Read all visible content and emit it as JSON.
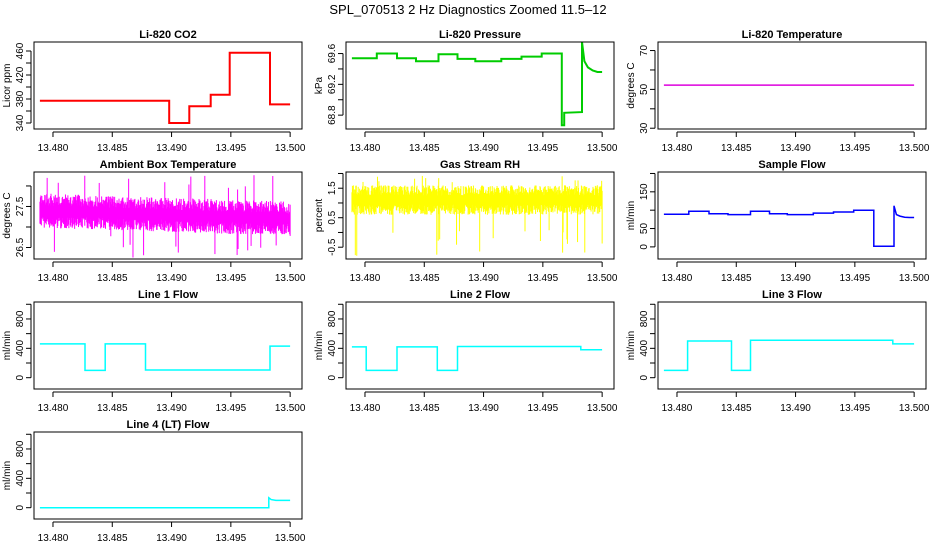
{
  "title": "SPL_070513  2 Hz Diagnostics Zoomed 11.5–12",
  "chart_data": [
    {
      "type": "line",
      "title": "Li-820 CO2",
      "ylabel": "Licor ppm",
      "color": "#ff0000",
      "xlim": [
        13.4784,
        13.501
      ],
      "ylim": [
        330,
        475
      ],
      "xticks": [
        13.48,
        13.485,
        13.49,
        13.495,
        13.5
      ],
      "xtick_labels": [
        "13.480",
        "13.485",
        "13.490",
        "13.495",
        "13.500"
      ],
      "yticks": [
        340,
        360,
        380,
        400,
        420,
        440,
        460
      ],
      "ytick_labels": [
        "340",
        "",
        "380",
        "",
        "420",
        "",
        "460"
      ],
      "x": [
        13.4789,
        13.4898,
        13.4898,
        13.4915,
        13.4915,
        13.4933,
        13.4933,
        13.4949,
        13.4949,
        13.4983,
        13.4983,
        13.5
      ],
      "y": [
        377,
        377,
        340,
        340,
        368,
        368,
        387,
        387,
        457,
        457,
        371,
        371
      ]
    },
    {
      "type": "line",
      "title": "Li-820 Pressure",
      "ylabel": "kPa",
      "color": "#00cc00",
      "xlim": [
        13.4784,
        13.501
      ],
      "ylim": [
        68.62,
        69.75
      ],
      "xticks": [
        13.48,
        13.485,
        13.49,
        13.495,
        13.5
      ],
      "xtick_labels": [
        "13.480",
        "13.485",
        "13.490",
        "13.495",
        "13.500"
      ],
      "yticks": [
        68.8,
        69.0,
        69.2,
        69.4,
        69.6
      ],
      "ytick_labels": [
        "68.8",
        "",
        "69.2",
        "",
        "69.6"
      ],
      "x": [
        13.4789,
        13.481,
        13.481,
        13.4827,
        13.4827,
        13.4843,
        13.4843,
        13.4862,
        13.4862,
        13.4878,
        13.4878,
        13.4893,
        13.4893,
        13.4915,
        13.4915,
        13.4932,
        13.4932,
        13.4949,
        13.4949,
        13.4966,
        13.4966,
        13.4968,
        13.4968,
        13.4983,
        13.4983,
        13.4985,
        13.4988,
        13.4992,
        13.4996,
        13.5
      ],
      "y": [
        69.54,
        69.54,
        69.6,
        69.6,
        69.54,
        69.54,
        69.5,
        69.5,
        69.59,
        69.59,
        69.53,
        69.53,
        69.5,
        69.5,
        69.53,
        69.53,
        69.56,
        69.56,
        69.6,
        69.6,
        68.67,
        68.67,
        68.83,
        68.84,
        69.75,
        69.5,
        69.42,
        69.38,
        69.36,
        69.36
      ]
    },
    {
      "type": "line",
      "title": "Li-820 Temperature",
      "ylabel": "degrees C",
      "color": "#dd00dd",
      "xlim": [
        13.4784,
        13.501
      ],
      "ylim": [
        29.6,
        74.4
      ],
      "xticks": [
        13.48,
        13.485,
        13.49,
        13.495,
        13.5
      ],
      "xtick_labels": [
        "13.480",
        "13.485",
        "13.490",
        "13.495",
        "13.500"
      ],
      "yticks": [
        30,
        40,
        50,
        60,
        70
      ],
      "ytick_labels": [
        "30",
        "",
        "50",
        "",
        "70"
      ],
      "x": [
        13.4789,
        13.5
      ],
      "y": [
        52.2,
        52.2
      ]
    },
    {
      "type": "line",
      "title": "Ambient Box Temperature",
      "ylabel": "degrees C",
      "color": "#ff00ff",
      "xlim": [
        13.4784,
        13.501
      ],
      "ylim": [
        26.22,
        28.34
      ],
      "xticks": [
        13.48,
        13.485,
        13.49,
        13.495,
        13.5
      ],
      "xtick_labels": [
        "13.480",
        "13.485",
        "13.490",
        "13.495",
        "13.500"
      ],
      "yticks": [
        26.5,
        27.0,
        27.5,
        28.0
      ],
      "ytick_labels": [
        "26.5",
        "",
        "27.5",
        ""
      ],
      "noise": {
        "x_start": 13.4789,
        "x_end": 13.5,
        "center": 27.4,
        "center_end": 27.2,
        "spread": 0.42,
        "min": 26.25,
        "max": 28.3
      }
    },
    {
      "type": "line",
      "title": "Gas Stream RH",
      "ylabel": "percent",
      "color": "#ffff00",
      "xlim": [
        13.4784,
        13.501
      ],
      "ylim": [
        -0.9,
        2.05
      ],
      "xticks": [
        13.48,
        13.485,
        13.49,
        13.495,
        13.5
      ],
      "xtick_labels": [
        "13.480",
        "13.485",
        "13.490",
        "13.495",
        "13.500"
      ],
      "yticks": [
        -0.5,
        0,
        0.5,
        1,
        1.5,
        2
      ],
      "ytick_labels": [
        "-0.5",
        "",
        "0.5",
        "",
        "1.5",
        ""
      ],
      "noise": {
        "x_start": 13.4789,
        "x_end": 13.5,
        "center": 1.1,
        "center_end": 1.1,
        "spread": 0.5,
        "min": -0.85,
        "max": 2.0
      }
    },
    {
      "type": "line",
      "title": "Sample Flow",
      "ylabel": "ml/min",
      "color": "#0000ff",
      "xlim": [
        13.4784,
        13.501
      ],
      "ylim": [
        -33,
        204
      ],
      "xticks": [
        13.48,
        13.485,
        13.49,
        13.495,
        13.5
      ],
      "xtick_labels": [
        "13.480",
        "13.485",
        "13.490",
        "13.495",
        "13.500"
      ],
      "yticks": [
        0,
        50,
        100,
        150,
        200
      ],
      "ytick_labels": [
        "0",
        "50",
        "",
        "150",
        ""
      ],
      "x": [
        13.4789,
        13.481,
        13.481,
        13.4827,
        13.4827,
        13.4843,
        13.4843,
        13.4862,
        13.4862,
        13.4878,
        13.4878,
        13.4893,
        13.4893,
        13.4915,
        13.4915,
        13.4932,
        13.4932,
        13.4949,
        13.4949,
        13.4966,
        13.4966,
        13.4983,
        13.4983,
        13.4985,
        13.4988,
        13.4992,
        13.4996,
        13.5
      ],
      "y": [
        89,
        89,
        97,
        97,
        90,
        90,
        88,
        88,
        97,
        97,
        90,
        90,
        88,
        88,
        92,
        92,
        95,
        95,
        100,
        100,
        2,
        2,
        112,
        88,
        84,
        81,
        80,
        80
      ]
    },
    {
      "type": "line",
      "title": "Line 1 Flow",
      "ylabel": "ml/min",
      "color": "#00ffff",
      "xlim": [
        13.4784,
        13.501
      ],
      "ylim": [
        -154,
        1031
      ],
      "xticks": [
        13.48,
        13.485,
        13.49,
        13.495,
        13.5
      ],
      "xtick_labels": [
        "13.480",
        "13.485",
        "13.490",
        "13.495",
        "13.500"
      ],
      "yticks": [
        0,
        200,
        400,
        600,
        800,
        1000
      ],
      "ytick_labels": [
        "0",
        "",
        "400",
        "",
        "800",
        ""
      ],
      "x": [
        13.4789,
        13.4827,
        13.4827,
        13.4844,
        13.4844,
        13.4878,
        13.4878,
        13.4983,
        13.4983,
        13.5
      ],
      "y": [
        460,
        460,
        100,
        100,
        460,
        460,
        105,
        105,
        430,
        430
      ]
    },
    {
      "type": "line",
      "title": "Line 2 Flow",
      "ylabel": "ml/min",
      "color": "#00ffff",
      "xlim": [
        13.4784,
        13.501
      ],
      "ylim": [
        -154,
        1031
      ],
      "xticks": [
        13.48,
        13.485,
        13.49,
        13.495,
        13.5
      ],
      "xtick_labels": [
        "13.480",
        "13.485",
        "13.490",
        "13.495",
        "13.500"
      ],
      "yticks": [
        0,
        200,
        400,
        600,
        800,
        1000
      ],
      "ytick_labels": [
        "0",
        "",
        "400",
        "",
        "800",
        ""
      ],
      "x": [
        13.4789,
        13.4801,
        13.4801,
        13.4827,
        13.4827,
        13.4861,
        13.4861,
        13.4878,
        13.4878,
        13.4982,
        13.4982,
        13.5
      ],
      "y": [
        420,
        420,
        100,
        100,
        420,
        420,
        100,
        100,
        425,
        425,
        380,
        380
      ]
    },
    {
      "type": "line",
      "title": "Line 3 Flow",
      "ylabel": "ml/min",
      "color": "#00ffff",
      "xlim": [
        13.4784,
        13.501
      ],
      "ylim": [
        -154,
        1031
      ],
      "xticks": [
        13.48,
        13.485,
        13.49,
        13.495,
        13.5
      ],
      "xtick_labels": [
        "13.480",
        "13.485",
        "13.490",
        "13.495",
        "13.500"
      ],
      "yticks": [
        0,
        200,
        400,
        600,
        800,
        1000
      ],
      "ytick_labels": [
        "0",
        "",
        "400",
        "",
        "800",
        ""
      ],
      "x": [
        13.4789,
        13.4809,
        13.4809,
        13.4846,
        13.4846,
        13.4862,
        13.4862,
        13.4982,
        13.4982,
        13.5
      ],
      "y": [
        100,
        100,
        500,
        500,
        100,
        100,
        510,
        510,
        460,
        460
      ]
    },
    {
      "type": "line",
      "title": "Line 4 (LT) Flow",
      "ylabel": "ml/min",
      "color": "#00ffff",
      "xlim": [
        13.4784,
        13.501
      ],
      "ylim": [
        -154,
        1031
      ],
      "xticks": [
        13.48,
        13.485,
        13.49,
        13.495,
        13.5
      ],
      "xtick_labels": [
        "13.480",
        "13.485",
        "13.490",
        "13.495",
        "13.500"
      ],
      "yticks": [
        0,
        200,
        400,
        600,
        800,
        1000
      ],
      "ytick_labels": [
        "0",
        "",
        "400",
        "",
        "800",
        ""
      ],
      "x": [
        13.4789,
        13.4982,
        13.4982,
        13.4984,
        13.4988,
        13.5
      ],
      "y": [
        0,
        0,
        135,
        110,
        100,
        100
      ]
    }
  ]
}
